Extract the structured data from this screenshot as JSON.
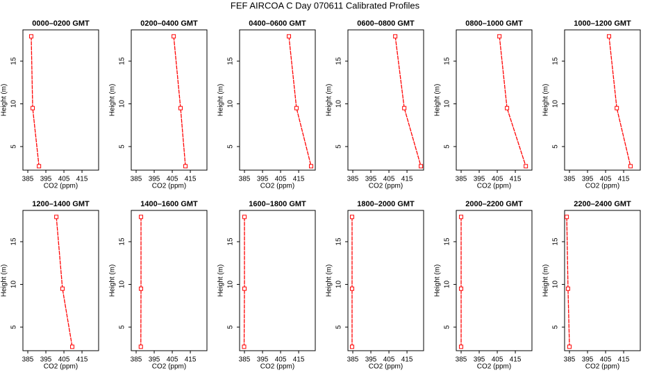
{
  "title": "FEF AIRCOA C  Day 070611  Calibrated Profiles",
  "chart_data": [
    {
      "type": "line",
      "title": "0000–0200 GMT",
      "x_label": "CO2 (ppm)",
      "y_label": "Height (m)",
      "x": [
        386.9,
        387.7,
        391.2
      ],
      "values": [
        17.9,
        9.5,
        2.7
      ],
      "color": "#ff0000",
      "xlim": [
        382.3,
        424.2
      ],
      "ylim": [
        2.24,
        18.66
      ],
      "xticks": [
        385,
        395,
        405,
        415
      ],
      "yticks": [
        5,
        10,
        15
      ]
    },
    {
      "type": "line",
      "title": "0200–0400 GMT",
      "x_label": "CO2 (ppm)",
      "y_label": "Height (m)",
      "x": [
        405.8,
        409.6,
        412.3
      ],
      "values": [
        17.9,
        9.5,
        2.7
      ],
      "color": "#ff0000",
      "xlim": [
        382.3,
        424.2
      ],
      "ylim": [
        2.24,
        18.66
      ],
      "xticks": [
        385,
        395,
        405,
        415
      ],
      "yticks": [
        5,
        10,
        15
      ]
    },
    {
      "type": "line",
      "title": "0400–0600 GMT",
      "x_label": "CO2 (ppm)",
      "y_label": "Height (m)",
      "x": [
        409.6,
        413.8,
        421.9
      ],
      "values": [
        17.9,
        9.5,
        2.7
      ],
      "color": "#ff0000",
      "xlim": [
        382.3,
        424.2
      ],
      "ylim": [
        2.24,
        18.66
      ],
      "xticks": [
        385,
        395,
        405,
        415
      ],
      "yticks": [
        5,
        10,
        15
      ]
    },
    {
      "type": "line",
      "title": "0600–0800 GMT",
      "x_label": "CO2 (ppm)",
      "y_label": "Height (m)",
      "x": [
        408.5,
        413.5,
        422.7
      ],
      "values": [
        17.9,
        9.5,
        2.7
      ],
      "color": "#ff0000",
      "xlim": [
        382.3,
        424.2
      ],
      "ylim": [
        2.24,
        18.66
      ],
      "xticks": [
        385,
        395,
        405,
        415
      ],
      "yticks": [
        5,
        10,
        15
      ]
    },
    {
      "type": "line",
      "title": "0800–1000 GMT",
      "x_label": "CO2 (ppm)",
      "y_label": "Height (m)",
      "x": [
        406.2,
        410.4,
        420.8
      ],
      "values": [
        17.9,
        9.5,
        2.7
      ],
      "color": "#ff0000",
      "xlim": [
        382.3,
        424.2
      ],
      "ylim": [
        2.24,
        18.66
      ],
      "xticks": [
        385,
        395,
        405,
        415
      ],
      "yticks": [
        5,
        10,
        15
      ]
    },
    {
      "type": "line",
      "title": "1000–1200 GMT",
      "x_label": "CO2 (ppm)",
      "y_label": "Height (m)",
      "x": [
        406.9,
        411.2,
        418.8
      ],
      "values": [
        17.9,
        9.5,
        2.7
      ],
      "color": "#ff0000",
      "xlim": [
        382.3,
        424.2
      ],
      "ylim": [
        2.24,
        18.66
      ],
      "xticks": [
        385,
        395,
        405,
        415
      ],
      "yticks": [
        5,
        10,
        15
      ]
    },
    {
      "type": "line",
      "title": "1200–1400 GMT",
      "x_label": "CO2 (ppm)",
      "y_label": "Height (m)",
      "x": [
        400.8,
        404.2,
        409.6
      ],
      "values": [
        17.9,
        9.5,
        2.7
      ],
      "color": "#ff0000",
      "xlim": [
        382.3,
        424.2
      ],
      "ylim": [
        2.24,
        18.66
      ],
      "xticks": [
        385,
        395,
        405,
        415
      ],
      "yticks": [
        5,
        10,
        15
      ]
    },
    {
      "type": "line",
      "title": "1400–1600 GMT",
      "x_label": "CO2 (ppm)",
      "y_label": "Height (m)",
      "x": [
        387.7,
        387.7,
        387.6
      ],
      "values": [
        17.9,
        9.5,
        2.7
      ],
      "color": "#ff0000",
      "xlim": [
        382.3,
        424.2
      ],
      "ylim": [
        2.24,
        18.66
      ],
      "xticks": [
        385,
        395,
        405,
        415
      ],
      "yticks": [
        5,
        10,
        15
      ]
    },
    {
      "type": "line",
      "title": "1600–1800 GMT",
      "x_label": "CO2 (ppm)",
      "y_label": "Height (m)",
      "x": [
        385.0,
        385.0,
        384.8
      ],
      "values": [
        17.9,
        9.5,
        2.7
      ],
      "color": "#ff0000",
      "xlim": [
        382.3,
        424.2
      ],
      "ylim": [
        2.24,
        18.66
      ],
      "xticks": [
        385,
        395,
        405,
        415
      ],
      "yticks": [
        5,
        10,
        15
      ]
    },
    {
      "type": "line",
      "title": "1800–2000 GMT",
      "x_label": "CO2 (ppm)",
      "y_label": "Height (m)",
      "x": [
        384.6,
        384.6,
        384.6
      ],
      "values": [
        17.9,
        9.5,
        2.7
      ],
      "color": "#ff0000",
      "xlim": [
        382.3,
        424.2
      ],
      "ylim": [
        2.24,
        18.66
      ],
      "xticks": [
        385,
        395,
        405,
        415
      ],
      "yticks": [
        5,
        10,
        15
      ]
    },
    {
      "type": "line",
      "title": "2000–2200 GMT",
      "x_label": "CO2 (ppm)",
      "y_label": "Height (m)",
      "x": [
        385.0,
        385.0,
        385.0
      ],
      "values": [
        17.9,
        9.5,
        2.7
      ],
      "color": "#ff0000",
      "xlim": [
        382.3,
        424.2
      ],
      "ylim": [
        2.24,
        18.66
      ],
      "xticks": [
        385,
        395,
        405,
        415
      ],
      "yticks": [
        5,
        10,
        15
      ]
    },
    {
      "type": "line",
      "title": "2200–2400 GMT",
      "x_label": "CO2 (ppm)",
      "y_label": "Height (m)",
      "x": [
        383.5,
        384.2,
        385.0
      ],
      "values": [
        17.9,
        9.5,
        2.7
      ],
      "color": "#ff0000",
      "xlim": [
        382.3,
        424.2
      ],
      "ylim": [
        2.24,
        18.66
      ],
      "xticks": [
        385,
        395,
        405,
        415
      ],
      "yticks": [
        5,
        10,
        15
      ]
    }
  ]
}
